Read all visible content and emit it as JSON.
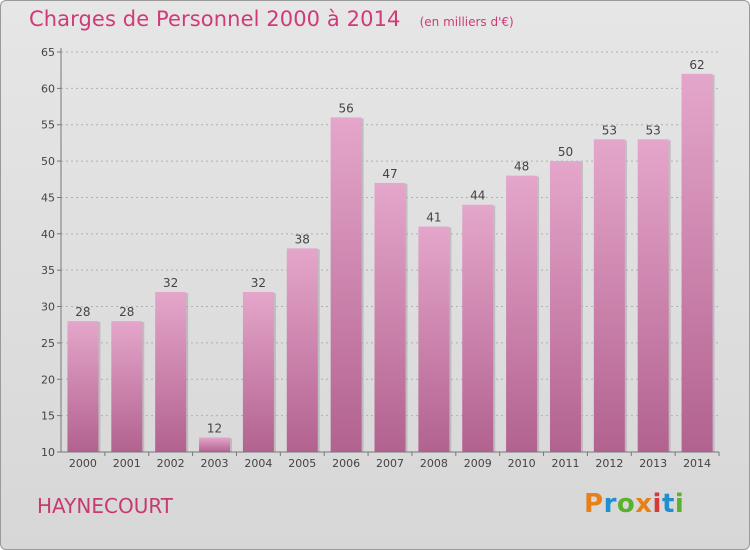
{
  "header": {
    "title": "Charges de Personnel 2000 à 2014",
    "subtitle": "(en milliers d'€)"
  },
  "footer": {
    "commune": "HAYNECOURT",
    "logo_text": "Proxiti",
    "logo_colors": [
      "#e8801a",
      "#1f8fd0",
      "#5cb030",
      "#e8801a",
      "#d43a3a",
      "#1f8fd0",
      "#5cb030"
    ]
  },
  "colors": {
    "bar_top": "#e5a6cb",
    "bar_bottom": "#b2628f",
    "text": "#c8396f"
  },
  "chart_data": {
    "type": "bar",
    "title": "Charges de Personnel 2000 à 2014",
    "subtitle": "(en milliers d'€)",
    "categories": [
      "2000",
      "2001",
      "2002",
      "2003",
      "2004",
      "2005",
      "2006",
      "2007",
      "2008",
      "2009",
      "2010",
      "2011",
      "2012",
      "2013",
      "2014"
    ],
    "values": [
      28,
      28,
      32,
      12,
      32,
      38,
      56,
      47,
      41,
      44,
      48,
      50,
      53,
      53,
      62
    ],
    "ylim": [
      10,
      65
    ],
    "yticks": [
      10,
      15,
      20,
      25,
      30,
      35,
      40,
      45,
      50,
      55,
      60,
      65
    ],
    "grid": true,
    "xlabel": "",
    "ylabel": ""
  }
}
